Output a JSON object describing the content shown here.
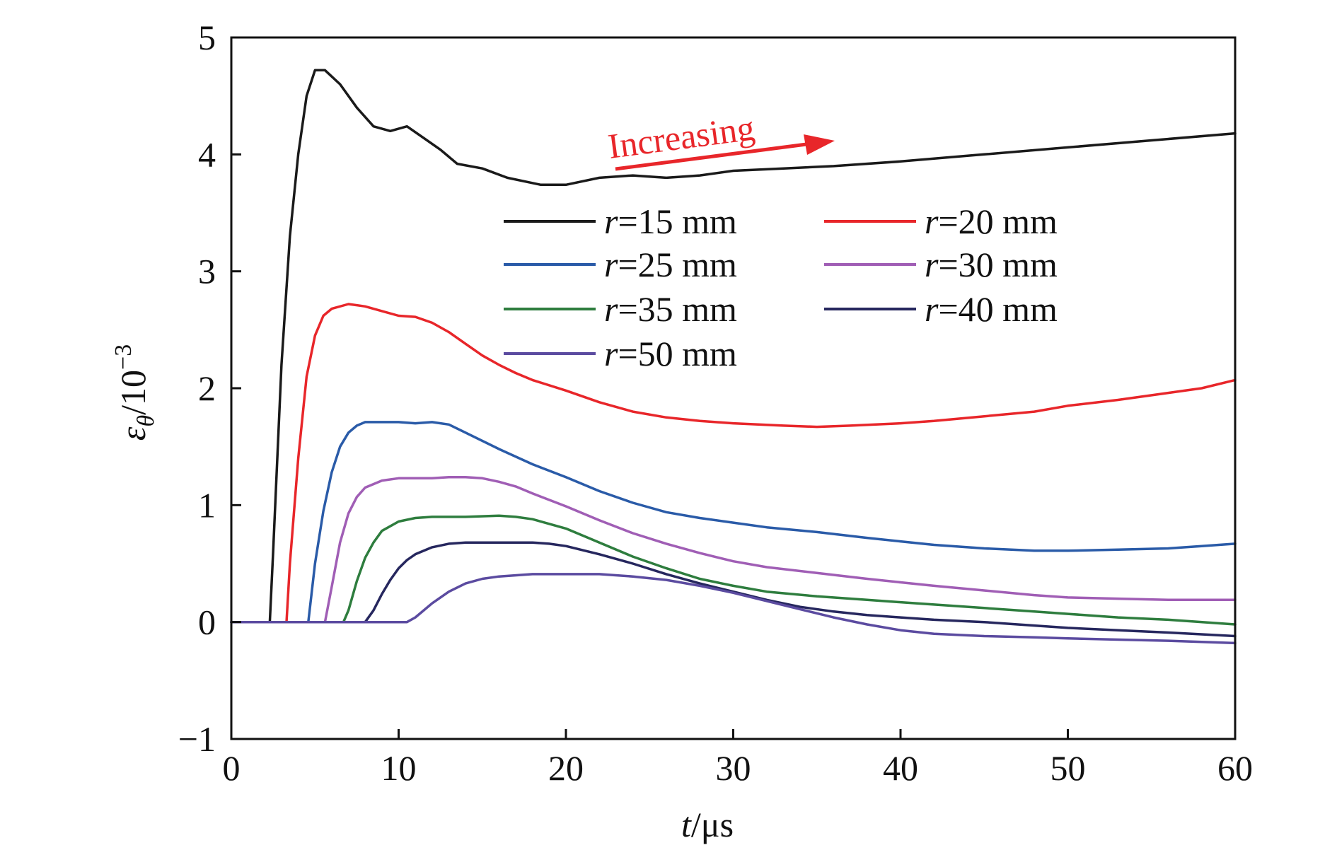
{
  "chart_data": {
    "type": "line",
    "xlabel": {
      "var": "t",
      "unit": "/μs"
    },
    "ylabel": {
      "var": "ε",
      "sub": "θ",
      "unit": "/10",
      "exp": "−3"
    },
    "xlim": [
      0,
      60
    ],
    "ylim": [
      -1,
      5
    ],
    "x_ticks": [
      0,
      10,
      20,
      30,
      40,
      50,
      60
    ],
    "x_tick_labels": [
      "0",
      "10",
      "20",
      "30",
      "40",
      "50",
      "60"
    ],
    "y_ticks": [
      -1,
      0,
      1,
      2,
      3,
      4,
      5
    ],
    "y_tick_labels": [
      "−1",
      "0",
      "1",
      "2",
      "3",
      "4",
      "5"
    ],
    "grid": false,
    "legend": {
      "placement": "center-top",
      "columns": 2
    },
    "annotation": {
      "text": "Increasing",
      "color": "#e8262a"
    },
    "series": [
      {
        "name": "r=15 mm",
        "var": "r",
        "label_rest": "=15 mm",
        "color": "#1a1a1a",
        "points": [
          [
            0,
            0
          ],
          [
            2.3,
            0
          ],
          [
            2.5,
            0.6
          ],
          [
            3,
            2.2
          ],
          [
            3.5,
            3.3
          ],
          [
            4,
            4.0
          ],
          [
            4.5,
            4.5
          ],
          [
            5,
            4.72
          ],
          [
            5.6,
            4.72
          ],
          [
            6.5,
            4.6
          ],
          [
            7.5,
            4.4
          ],
          [
            8.5,
            4.24
          ],
          [
            9.5,
            4.2
          ],
          [
            10.5,
            4.24
          ],
          [
            11.5,
            4.14
          ],
          [
            12.5,
            4.04
          ],
          [
            13.5,
            3.92
          ],
          [
            15,
            3.88
          ],
          [
            16.5,
            3.8
          ],
          [
            18.5,
            3.74
          ],
          [
            20,
            3.74
          ],
          [
            22,
            3.8
          ],
          [
            24,
            3.82
          ],
          [
            26,
            3.8
          ],
          [
            28,
            3.82
          ],
          [
            30,
            3.86
          ],
          [
            33,
            3.88
          ],
          [
            36,
            3.9
          ],
          [
            40,
            3.94
          ],
          [
            45,
            4.0
          ],
          [
            50,
            4.06
          ],
          [
            55,
            4.12
          ],
          [
            60,
            4.18
          ]
        ]
      },
      {
        "name": "r=20 mm",
        "var": "r",
        "label_rest": "=20 mm",
        "color": "#e8262a",
        "points": [
          [
            0,
            0
          ],
          [
            3.3,
            0
          ],
          [
            3.5,
            0.5
          ],
          [
            4,
            1.4
          ],
          [
            4.5,
            2.1
          ],
          [
            5,
            2.45
          ],
          [
            5.5,
            2.62
          ],
          [
            6,
            2.68
          ],
          [
            7,
            2.72
          ],
          [
            8,
            2.7
          ],
          [
            9,
            2.66
          ],
          [
            10,
            2.62
          ],
          [
            11,
            2.61
          ],
          [
            12,
            2.56
          ],
          [
            13,
            2.48
          ],
          [
            14,
            2.38
          ],
          [
            15,
            2.28
          ],
          [
            16,
            2.2
          ],
          [
            17,
            2.13
          ],
          [
            18,
            2.07
          ],
          [
            20,
            1.98
          ],
          [
            22,
            1.88
          ],
          [
            24,
            1.8
          ],
          [
            26,
            1.75
          ],
          [
            28,
            1.72
          ],
          [
            30,
            1.7
          ],
          [
            33,
            1.68
          ],
          [
            35,
            1.67
          ],
          [
            37,
            1.68
          ],
          [
            40,
            1.7
          ],
          [
            42,
            1.72
          ],
          [
            45,
            1.76
          ],
          [
            48,
            1.8
          ],
          [
            50,
            1.85
          ],
          [
            53,
            1.9
          ],
          [
            56,
            1.96
          ],
          [
            58,
            2.0
          ],
          [
            60,
            2.07
          ]
        ]
      },
      {
        "name": "r=25 mm",
        "var": "r",
        "label_rest": "=25 mm",
        "color": "#2a5ba8",
        "points": [
          [
            0,
            0
          ],
          [
            4.6,
            0
          ],
          [
            5,
            0.5
          ],
          [
            5.5,
            0.95
          ],
          [
            6,
            1.28
          ],
          [
            6.5,
            1.5
          ],
          [
            7,
            1.62
          ],
          [
            7.5,
            1.68
          ],
          [
            8,
            1.71
          ],
          [
            10,
            1.71
          ],
          [
            11,
            1.7
          ],
          [
            12,
            1.71
          ],
          [
            13,
            1.69
          ],
          [
            14,
            1.62
          ],
          [
            16,
            1.48
          ],
          [
            18,
            1.35
          ],
          [
            20,
            1.24
          ],
          [
            22,
            1.12
          ],
          [
            24,
            1.02
          ],
          [
            26,
            0.94
          ],
          [
            28,
            0.89
          ],
          [
            30,
            0.85
          ],
          [
            32,
            0.81
          ],
          [
            35,
            0.77
          ],
          [
            38,
            0.72
          ],
          [
            40,
            0.69
          ],
          [
            42,
            0.66
          ],
          [
            45,
            0.63
          ],
          [
            48,
            0.61
          ],
          [
            50,
            0.61
          ],
          [
            53,
            0.62
          ],
          [
            56,
            0.63
          ],
          [
            58,
            0.65
          ],
          [
            60,
            0.67
          ]
        ]
      },
      {
        "name": "r=30 mm",
        "var": "r",
        "label_rest": "=30 mm",
        "color": "#a05eb5",
        "points": [
          [
            0,
            0
          ],
          [
            5.6,
            0
          ],
          [
            6,
            0.3
          ],
          [
            6.5,
            0.68
          ],
          [
            7,
            0.93
          ],
          [
            7.5,
            1.07
          ],
          [
            8,
            1.15
          ],
          [
            9,
            1.21
          ],
          [
            10,
            1.23
          ],
          [
            12,
            1.23
          ],
          [
            13,
            1.24
          ],
          [
            14,
            1.24
          ],
          [
            15,
            1.23
          ],
          [
            16,
            1.2
          ],
          [
            17,
            1.16
          ],
          [
            18,
            1.1
          ],
          [
            20,
            0.99
          ],
          [
            22,
            0.87
          ],
          [
            24,
            0.76
          ],
          [
            26,
            0.67
          ],
          [
            28,
            0.59
          ],
          [
            30,
            0.52
          ],
          [
            32,
            0.47
          ],
          [
            35,
            0.42
          ],
          [
            38,
            0.37
          ],
          [
            40,
            0.34
          ],
          [
            42,
            0.31
          ],
          [
            45,
            0.27
          ],
          [
            48,
            0.23
          ],
          [
            50,
            0.21
          ],
          [
            53,
            0.2
          ],
          [
            56,
            0.19
          ],
          [
            60,
            0.19
          ]
        ]
      },
      {
        "name": "r=35 mm",
        "var": "r",
        "label_rest": "=35 mm",
        "color": "#2e7d3e",
        "points": [
          [
            0,
            0
          ],
          [
            6.7,
            0
          ],
          [
            7,
            0.1
          ],
          [
            7.5,
            0.35
          ],
          [
            8,
            0.55
          ],
          [
            8.5,
            0.68
          ],
          [
            9,
            0.78
          ],
          [
            10,
            0.86
          ],
          [
            11,
            0.89
          ],
          [
            12,
            0.9
          ],
          [
            14,
            0.9
          ],
          [
            16,
            0.91
          ],
          [
            17,
            0.9
          ],
          [
            18,
            0.88
          ],
          [
            20,
            0.8
          ],
          [
            22,
            0.68
          ],
          [
            24,
            0.56
          ],
          [
            26,
            0.46
          ],
          [
            28,
            0.37
          ],
          [
            30,
            0.31
          ],
          [
            32,
            0.26
          ],
          [
            35,
            0.22
          ],
          [
            38,
            0.19
          ],
          [
            40,
            0.17
          ],
          [
            42,
            0.15
          ],
          [
            45,
            0.12
          ],
          [
            48,
            0.09
          ],
          [
            50,
            0.07
          ],
          [
            53,
            0.04
          ],
          [
            56,
            0.02
          ],
          [
            60,
            -0.02
          ]
        ]
      },
      {
        "name": "r=40 mm",
        "var": "r",
        "label_rest": "=40 mm",
        "color": "#26275e",
        "points": [
          [
            0,
            0
          ],
          [
            8,
            0
          ],
          [
            8.5,
            0.1
          ],
          [
            9,
            0.24
          ],
          [
            9.5,
            0.36
          ],
          [
            10,
            0.46
          ],
          [
            10.5,
            0.53
          ],
          [
            11,
            0.58
          ],
          [
            12,
            0.64
          ],
          [
            13,
            0.67
          ],
          [
            14,
            0.68
          ],
          [
            16,
            0.68
          ],
          [
            18,
            0.68
          ],
          [
            19,
            0.67
          ],
          [
            20,
            0.65
          ],
          [
            22,
            0.58
          ],
          [
            24,
            0.5
          ],
          [
            26,
            0.41
          ],
          [
            28,
            0.33
          ],
          [
            30,
            0.26
          ],
          [
            32,
            0.19
          ],
          [
            34,
            0.13
          ],
          [
            36,
            0.09
          ],
          [
            38,
            0.06
          ],
          [
            40,
            0.04
          ],
          [
            42,
            0.02
          ],
          [
            45,
            0.0
          ],
          [
            48,
            -0.03
          ],
          [
            50,
            -0.05
          ],
          [
            53,
            -0.07
          ],
          [
            56,
            -0.09
          ],
          [
            60,
            -0.12
          ]
        ]
      },
      {
        "name": "r=50 mm",
        "var": "r",
        "label_rest": "=50 mm",
        "color": "#5b4ba0",
        "points": [
          [
            0,
            0
          ],
          [
            10.5,
            0
          ],
          [
            11,
            0.04
          ],
          [
            11.5,
            0.1
          ],
          [
            12,
            0.16
          ],
          [
            13,
            0.26
          ],
          [
            14,
            0.33
          ],
          [
            15,
            0.37
          ],
          [
            16,
            0.39
          ],
          [
            18,
            0.41
          ],
          [
            20,
            0.41
          ],
          [
            22,
            0.41
          ],
          [
            24,
            0.39
          ],
          [
            26,
            0.36
          ],
          [
            28,
            0.31
          ],
          [
            30,
            0.25
          ],
          [
            32,
            0.18
          ],
          [
            34,
            0.11
          ],
          [
            36,
            0.04
          ],
          [
            38,
            -0.02
          ],
          [
            40,
            -0.07
          ],
          [
            42,
            -0.1
          ],
          [
            45,
            -0.12
          ],
          [
            48,
            -0.13
          ],
          [
            50,
            -0.14
          ],
          [
            53,
            -0.15
          ],
          [
            56,
            -0.16
          ],
          [
            60,
            -0.18
          ]
        ]
      }
    ]
  }
}
